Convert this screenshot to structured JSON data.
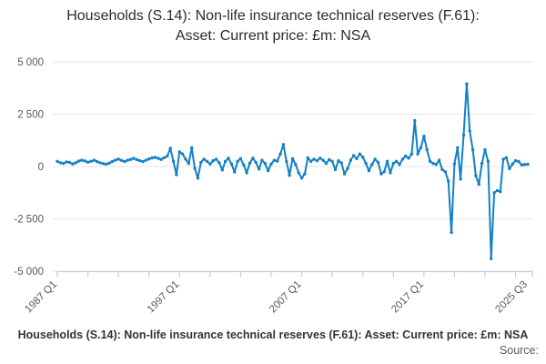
{
  "title": "Households (S.14): Non-life insurance technical reserves (F.61): Asset: Current price: £m: NSA",
  "footer": {
    "caption": "Households (S.14): Non-life insurance technical reserves (F.61): Asset: Current price: £m: NSA",
    "source_label": "Source:"
  },
  "colors": {
    "line": "#1380c4",
    "grid": "#e6e6e6",
    "axis": "#c2cfe0",
    "label": "#595959"
  },
  "chart_data": {
    "type": "line",
    "title": "Households (S.14): Non-life insurance technical reserves (F.61): Asset: Current price: £m: NSA",
    "unit": "£m",
    "frequency": "quarterly",
    "x_start": "1987 Q1",
    "x_end": "2025 Q3",
    "ylim": [
      -5000,
      5000
    ],
    "grid": true,
    "legend": false,
    "yticks": [
      {
        "v": 5000,
        "label": "5 000"
      },
      {
        "v": 2500,
        "label": "2 500"
      },
      {
        "v": 0,
        "label": "0"
      },
      {
        "v": -2500,
        "label": "-2 500"
      },
      {
        "v": -5000,
        "label": "-5 000"
      }
    ],
    "xticks": [
      {
        "label": "1987 Q1",
        "pos": 0
      },
      {
        "label": "1997 Q1",
        "pos": 40
      },
      {
        "label": "2007 Q1",
        "pos": 80
      },
      {
        "label": "2017 Q1",
        "pos": 120
      },
      {
        "label": "2025 Q3",
        "pos": 154
      }
    ],
    "minor_tick_every": 10,
    "values": [
      250,
      180,
      150,
      220,
      200,
      120,
      180,
      260,
      300,
      270,
      210,
      250,
      300,
      240,
      180,
      140,
      110,
      160,
      240,
      310,
      350,
      290,
      240,
      300,
      340,
      390,
      330,
      280,
      240,
      300,
      360,
      410,
      440,
      390,
      340,
      420,
      500,
      870,
      250,
      -390,
      700,
      600,
      350,
      150,
      900,
      -100,
      -550,
      200,
      350,
      250,
      120,
      280,
      350,
      180,
      -160,
      250,
      400,
      120,
      -260,
      250,
      380,
      80,
      -300,
      160,
      400,
      200,
      -120,
      300,
      150,
      -200,
      120,
      300,
      260,
      600,
      1050,
      250,
      -420,
      380,
      100,
      -300,
      -550,
      -350,
      420,
      250,
      350,
      280,
      400,
      300,
      150,
      330,
      250,
      -150,
      280,
      180,
      -350,
      -100,
      300,
      520,
      380,
      600,
      450,
      150,
      -200,
      100,
      350,
      200,
      -350,
      -250,
      250,
      -300,
      150,
      250,
      100,
      350,
      500,
      400,
      600,
      2200,
      600,
      900,
      1450,
      800,
      250,
      150,
      100,
      300,
      -150,
      -250,
      -700,
      -3150,
      130,
      900,
      -600,
      1500,
      3950,
      1700,
      800,
      -450,
      -850,
      150,
      800,
      250,
      -4400,
      -1250,
      -1150,
      -1200,
      350,
      420,
      -100,
      120,
      280,
      240,
      80,
      100,
      110
    ]
  }
}
